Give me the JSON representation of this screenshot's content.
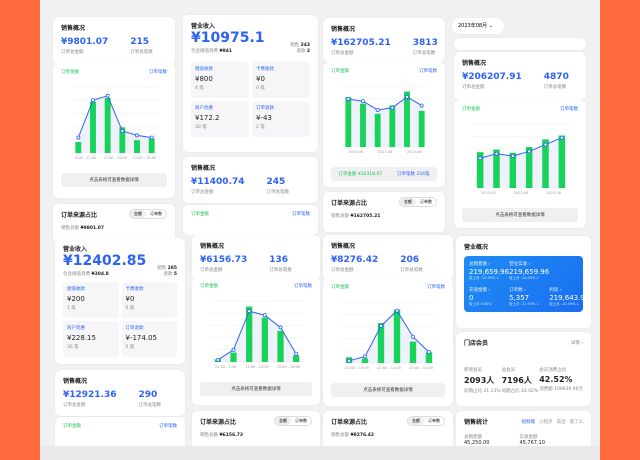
{
  "colors": {
    "bar": "#17d35a",
    "line": "#2d62f5",
    "accent": "#2d62f5",
    "frame": "#ff6b3d"
  },
  "labels": {
    "sales_overview": "销售概况",
    "order_amount": "订单总金额",
    "order_count": "订单总笔数",
    "legend_amount": "订单金额",
    "legend_count": "订单笔数",
    "detail_btn": "点击表格可查看数据详情",
    "order_source": "订单来源占比",
    "seg_amount": "金额",
    "seg_count": "订单数",
    "sales_total": "销售总额",
    "revenue": "营业收入",
    "sales": "销售",
    "refund": "退款",
    "contains_fee": "包含储值消费",
    "unit": "笔"
  },
  "sales": [
    {
      "amount": "¥9801.07",
      "count": "215"
    },
    {
      "amount": "¥11400.74",
      "count": "245"
    },
    {
      "amount": "¥162705.21",
      "count": "3813"
    },
    {
      "amount": "¥206207.91",
      "count": "4870"
    },
    {
      "amount": "¥6156.73",
      "count": "136"
    },
    {
      "amount": "¥8276.42",
      "count": "206"
    },
    {
      "amount": "¥12921.36",
      "count": "290"
    }
  ],
  "order_sources": [
    {
      "total": "¥9801.07"
    },
    {
      "total": "¥162705.21"
    },
    {
      "total": "¥6156.73"
    },
    {
      "total": "¥8276.42"
    }
  ],
  "revenue_cards": [
    {
      "total": "¥10975.1",
      "fee": "¥941",
      "sales_n": "243",
      "refund_n": "2",
      "cells": [
        {
          "label": "储值收款",
          "value": "¥800",
          "n": "4 笔"
        },
        {
          "label": "卡费收款",
          "value": "¥0",
          "n": "0 笔"
        },
        {
          "label": "商户优惠",
          "value": "¥172.2",
          "n": "30 笔"
        },
        {
          "label": "订单退款",
          "value": "¥-43",
          "n": "2 笔"
        }
      ]
    },
    {
      "total": "¥12402.85",
      "fee": "¥304.8",
      "sales_n": "285",
      "refund_n": "5",
      "cells": [
        {
          "label": "储值收款",
          "value": "¥200",
          "n": "1 笔"
        },
        {
          "label": "卡费收款",
          "value": "¥0",
          "n": "0 笔"
        },
        {
          "label": "商户优惠",
          "value": "¥228.15",
          "n": "36 笔"
        },
        {
          "label": "订单退款",
          "value": "¥-174.05",
          "n": "5 笔"
        }
      ]
    }
  ],
  "summary_footer": {
    "amount": "订单金额 ¥10318.07",
    "count": "订单笔数 224笔"
  },
  "date_select": "2023年08月",
  "business": {
    "title": "营业概况",
    "items": [
      {
        "label": "总销售额 ›",
        "value": "219,659.96",
        "cmp": "较上月 -10.49% ↓"
      },
      {
        "label": "营业实收 ›",
        "value": "219,659.96",
        "cmp": "较上月 -10.49% ↓"
      },
      {
        "label": "",
        "value": "",
        "cmp": ""
      },
      {
        "label": "充值金额 ›",
        "value": "0",
        "cmp": "较上月 0.00%"
      },
      {
        "label": "订单数 ›",
        "value": "5,357",
        "cmp": "较上月 -11.53% ↓"
      },
      {
        "label": "利润 ›",
        "value": "219,643.96",
        "cmp": "较上月 -10.49% ↓"
      }
    ]
  },
  "members": {
    "title": "门店会员",
    "more": "详情 ›",
    "items": [
      {
        "label": "新增会员",
        "value": "2093人",
        "sub": "同期占比 41.13%"
      },
      {
        "label": "总会员",
        "value": "7196人",
        "sub": "同期占比 42.02%"
      },
      {
        "label": "会员消费占比",
        "value": "42.52%",
        "sub": "消费额 109639.96元"
      }
    ]
  },
  "stats": {
    "title": "销售统计",
    "tabs": [
      "视频端",
      "小程序",
      "美团",
      "饿了么"
    ],
    "items": [
      {
        "label": "总销售额",
        "value": "45,250.00"
      },
      {
        "label": "实收金额",
        "value": "45,767.10"
      }
    ]
  },
  "chart_data": [
    {
      "type": "bar+line",
      "bars": [
        300,
        1400,
        1500,
        700,
        350,
        400
      ],
      "line": [
        7,
        24,
        26,
        10,
        8,
        7
      ],
      "ymax": 1800,
      "y2max": 30,
      "xlabels": [
        "9:00 - 11:00",
        "13:00 - 15:00",
        "17:00 - 19:00"
      ]
    },
    {
      "type": "bar+line",
      "bars": [
        9000,
        7800,
        6000,
        7500,
        10000,
        6500
      ],
      "line": [
        22,
        21,
        17,
        18,
        23,
        19
      ],
      "ymax": 11000,
      "y2max": 28,
      "xlabels": [
        "2023-08",
        "2023-08",
        "2023-08"
      ]
    },
    {
      "type": "bar+line",
      "bars": [
        5600,
        6000,
        5500,
        6400,
        7600,
        8200
      ],
      "line": [
        13,
        15,
        14,
        16,
        19,
        22
      ],
      "ymax": 10000,
      "y2max": 28,
      "xlabels": [
        "2023-08",
        "2023-08",
        "2023-08"
      ]
    },
    {
      "type": "bar+line",
      "bars": [
        50,
        170,
        1000,
        800,
        560,
        120
      ],
      "line": [
        1,
        6,
        25,
        23,
        17,
        4
      ],
      "ymax": 1100,
      "y2max": 30,
      "xlabels": [
        "21:00 - 7:00",
        "11:00 - 13:00",
        "15:00 - 16:00"
      ]
    },
    {
      "type": "bar+line",
      "bars": [
        150,
        120,
        1050,
        1400,
        560,
        280
      ],
      "line": [
        1,
        3,
        17,
        24,
        12,
        5
      ],
      "ymax": 1600,
      "y2max": 28,
      "xlabels": [
        "21:00 - 13:00",
        "11:00 - 12:00",
        "13:00 - 14:00"
      ]
    }
  ]
}
